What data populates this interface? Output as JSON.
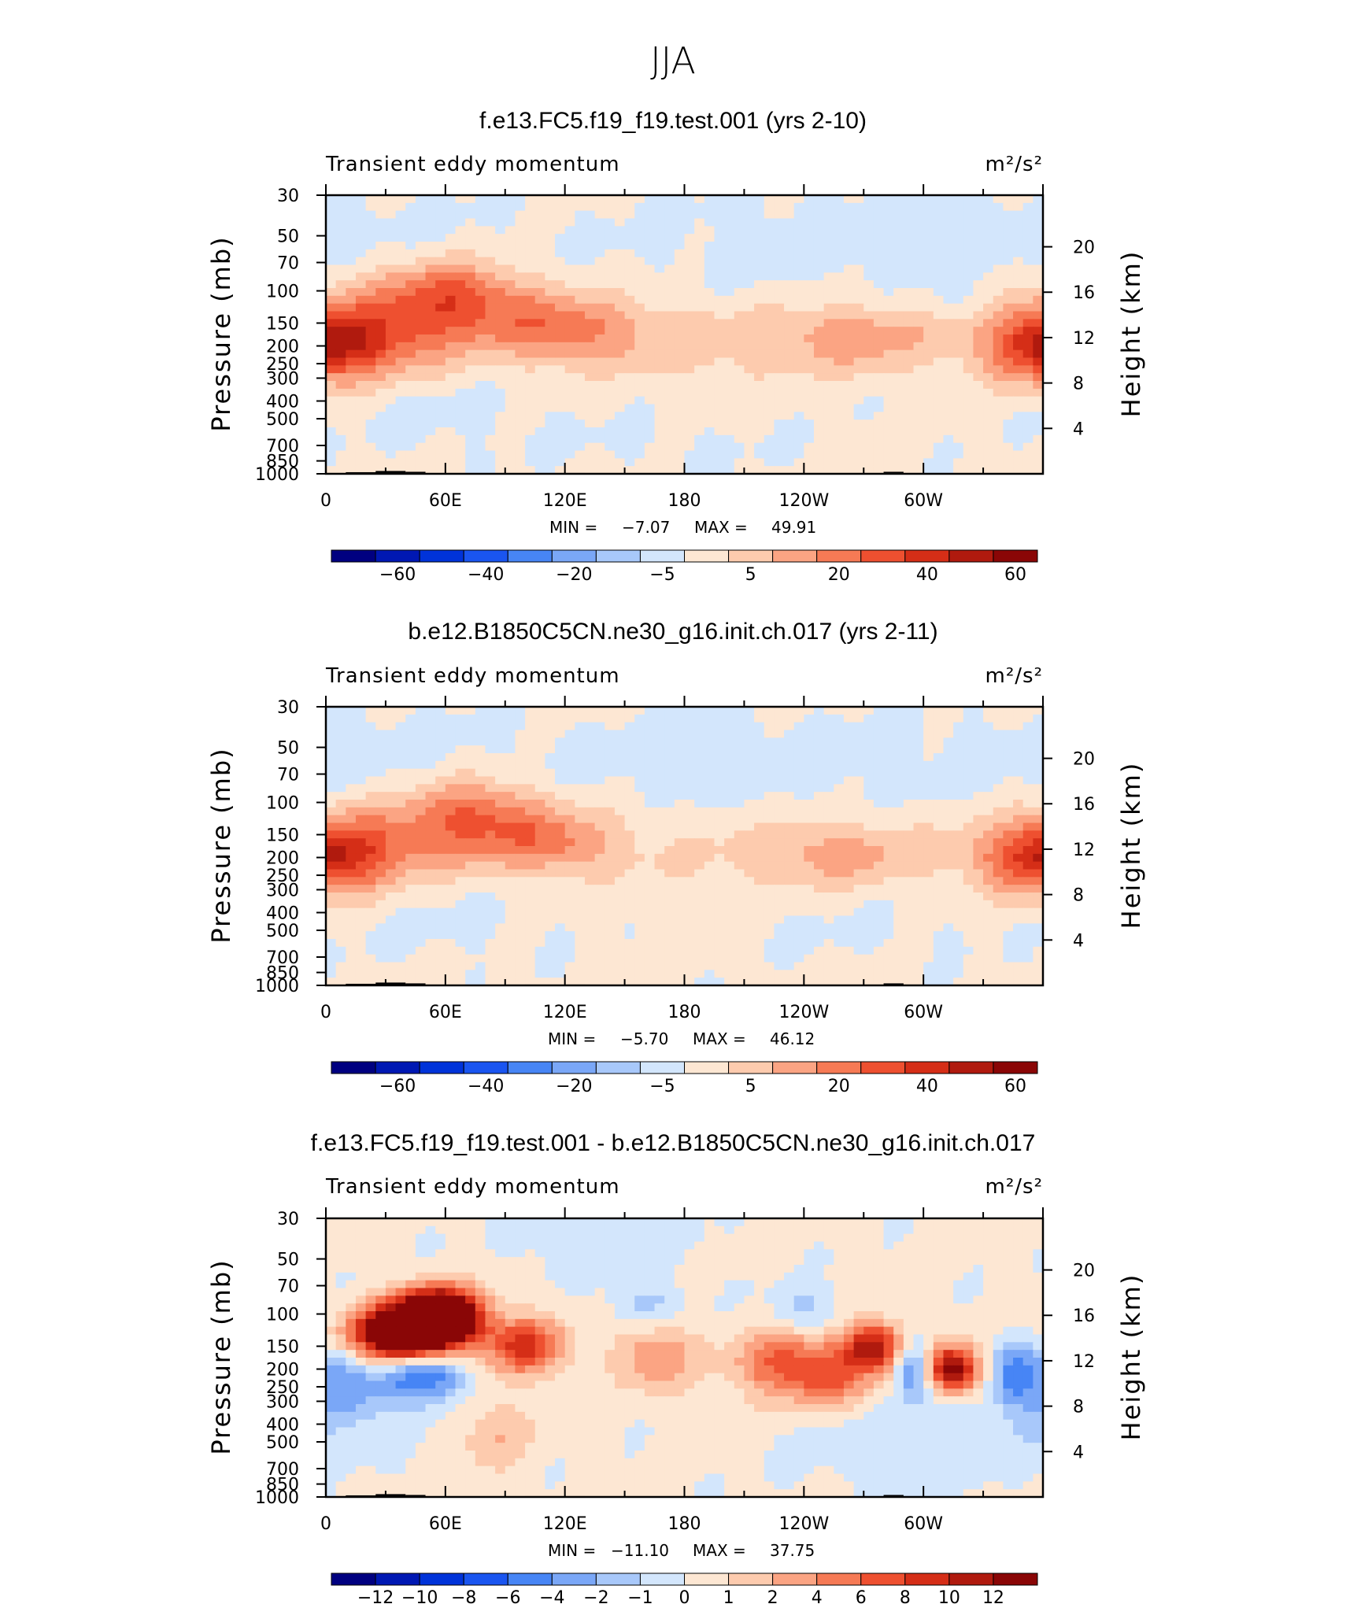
{
  "title": "JJA",
  "colors": {
    "full_levels": [
      "#000080",
      "#0018b3",
      "#0033d9",
      "#1a55f0",
      "#4785f5",
      "#7aa7f7",
      "#a8c8fa",
      "#d3e6fc",
      "#fde7d3",
      "#fdcbae",
      "#fba483",
      "#f67a55",
      "#ee5030",
      "#d52e17",
      "#b01a0e",
      "#8a0606"
    ],
    "diff_levels": [
      "#000080",
      "#0018b3",
      "#0033d9",
      "#1a55f0",
      "#4785f5",
      "#7aa7f7",
      "#a8c8fa",
      "#d3e6fc",
      "#fde7d3",
      "#fdcbae",
      "#fba483",
      "#f67a55",
      "#ee5030",
      "#d52e17",
      "#b01a0e",
      "#8a0606"
    ],
    "topography": "#000000"
  },
  "chart_data": [
    {
      "type": "heatmap",
      "panel_title": "f.e13.FC5.f19_f19.test.001 (yrs 2-10)",
      "left_label": "Transient eddy momentum",
      "units": "m²/s²",
      "ylabel": "Pressure (mb)",
      "ylabel_right": "Height (km)",
      "x_ticks": [
        "0",
        "60E",
        "120E",
        "180",
        "120W",
        "60W"
      ],
      "xlim": [
        0,
        360
      ],
      "y_ticks": [
        "30",
        "50",
        "70",
        "100",
        "150",
        "200",
        "250",
        "300",
        "400",
        "500",
        "700",
        "850",
        "1000"
      ],
      "ylim": [
        1000,
        30
      ],
      "y_ticks_right": [
        "20",
        "16",
        "12",
        "8",
        "4"
      ],
      "stats": {
        "min_label": "MIN =",
        "min": "−7.07",
        "max_label": "MAX =",
        "max": "49.91"
      },
      "colorbar_labels": [
        "−60",
        "−40",
        "−20",
        "−5",
        "5",
        "20",
        "40",
        "60"
      ],
      "colorbar_scale": [
        -70,
        70
      ],
      "background_value": 2,
      "features": [
        {
          "lon": 35,
          "p": 160,
          "amp": 26,
          "sx": 28,
          "sy": 0.38
        },
        {
          "lon": 65,
          "p": 105,
          "amp": 30,
          "sx": 24,
          "sy": 0.3
        },
        {
          "lon": 115,
          "p": 160,
          "amp": 28,
          "sx": 28,
          "sy": 0.32
        },
        {
          "lon": 0,
          "p": 200,
          "amp": 20,
          "sx": 16,
          "sy": 0.38
        },
        {
          "lon": 360,
          "p": 200,
          "amp": 28,
          "sx": 26,
          "sy": 0.3
        },
        {
          "lon": 265,
          "p": 180,
          "amp": 22,
          "sx": 30,
          "sy": 0.3
        },
        {
          "lon": 205,
          "p": 200,
          "amp": 7,
          "sx": 25,
          "sy": 0.4
        },
        {
          "lon": 160,
          "p": 180,
          "amp": 8,
          "sx": 25,
          "sy": 0.35
        },
        {
          "lon": 0,
          "p": 45,
          "amp": -4,
          "sx": 70,
          "sy": 0.4
        },
        {
          "lon": 230,
          "p": 60,
          "amp": -5,
          "sx": 70,
          "sy": 0.5
        },
        {
          "lon": 50,
          "p": 450,
          "amp": -4,
          "sx": 45,
          "sy": 0.35
        },
        {
          "lon": 170,
          "p": 700,
          "amp": -3,
          "sx": 50,
          "sy": 0.25
        },
        {
          "lon": 315,
          "p": 120,
          "amp": -4,
          "sx": 8,
          "sy": 0.2
        }
      ]
    },
    {
      "type": "heatmap",
      "panel_title": "b.e12.B1850C5CN.ne30_g16.init.ch.017 (yrs 2-11)",
      "left_label": "Transient eddy momentum",
      "units": "m²/s²",
      "ylabel": "Pressure (mb)",
      "ylabel_right": "Height (km)",
      "x_ticks": [
        "0",
        "60E",
        "120E",
        "180",
        "120W",
        "60W"
      ],
      "xlim": [
        0,
        360
      ],
      "y_ticks": [
        "30",
        "50",
        "70",
        "100",
        "150",
        "200",
        "250",
        "300",
        "400",
        "500",
        "700",
        "850",
        "1000"
      ],
      "ylim": [
        1000,
        30
      ],
      "y_ticks_right": [
        "20",
        "16",
        "12",
        "8",
        "4"
      ],
      "stats": {
        "min_label": "MIN =",
        "min": "−5.70",
        "max_label": "MAX =",
        "max": "46.12"
      },
      "colorbar_labels": [
        "−60",
        "−40",
        "−20",
        "−5",
        "5",
        "20",
        "40",
        "60"
      ],
      "colorbar_scale": [
        -70,
        70
      ],
      "background_value": 2,
      "features": [
        {
          "lon": 40,
          "p": 160,
          "amp": 20,
          "sx": 32,
          "sy": 0.35
        },
        {
          "lon": 75,
          "p": 110,
          "amp": 26,
          "sx": 22,
          "sy": 0.3
        },
        {
          "lon": 115,
          "p": 165,
          "amp": 26,
          "sx": 26,
          "sy": 0.3
        },
        {
          "lon": 0,
          "p": 200,
          "amp": 22,
          "sx": 20,
          "sy": 0.35
        },
        {
          "lon": 360,
          "p": 200,
          "amp": 24,
          "sx": 24,
          "sy": 0.3
        },
        {
          "lon": 255,
          "p": 190,
          "amp": 20,
          "sx": 36,
          "sy": 0.3
        },
        {
          "lon": 20,
          "p": 55,
          "amp": -5,
          "sx": 50,
          "sy": 0.4
        },
        {
          "lon": 210,
          "p": 60,
          "amp": -6,
          "sx": 80,
          "sy": 0.45
        },
        {
          "lon": 60,
          "p": 450,
          "amp": -4,
          "sx": 40,
          "sy": 0.35
        },
        {
          "lon": 270,
          "p": 500,
          "amp": -3,
          "sx": 50,
          "sy": 0.3
        },
        {
          "lon": 180,
          "p": 300,
          "amp": 4,
          "sx": 20,
          "sy": 0.6
        }
      ]
    },
    {
      "type": "heatmap",
      "panel_title": "f.e13.FC5.f19_f19.test.001 - b.e12.B1850C5CN.ne30_g16.init.ch.017",
      "left_label": "Transient eddy momentum",
      "units": "m²/s²",
      "ylabel": "Pressure (mb)",
      "ylabel_right": "Height (km)",
      "x_ticks": [
        "0",
        "60E",
        "120E",
        "180",
        "120W",
        "60W"
      ],
      "xlim": [
        0,
        360
      ],
      "y_ticks": [
        "30",
        "50",
        "70",
        "100",
        "150",
        "200",
        "250",
        "300",
        "400",
        "500",
        "700",
        "850",
        "1000"
      ],
      "ylim": [
        1000,
        30
      ],
      "y_ticks_right": [
        "20",
        "16",
        "12",
        "8",
        "4"
      ],
      "stats": {
        "min_label": "MIN =",
        "min": "−11.10",
        "max_label": "MAX =",
        "max": "37.75"
      },
      "colorbar_labels": [
        "−12",
        "−10",
        "−8",
        "−6",
        "−4",
        "−2",
        "−1",
        "0",
        "1",
        "2",
        "4",
        "6",
        "8",
        "10",
        "12"
      ],
      "colorbar_scale": [
        -14,
        14
      ],
      "background_value": 0.4,
      "features": [
        {
          "lon": 40,
          "p": 130,
          "amp": 22,
          "sx": 18,
          "sy": 0.25
        },
        {
          "lon": 58,
          "p": 100,
          "amp": 20,
          "sx": 14,
          "sy": 0.22
        },
        {
          "lon": 100,
          "p": 150,
          "amp": 9,
          "sx": 14,
          "sy": 0.25
        },
        {
          "lon": 165,
          "p": 170,
          "amp": 5,
          "sx": 14,
          "sy": 0.3
        },
        {
          "lon": 230,
          "p": 190,
          "amp": 7,
          "sx": 18,
          "sy": 0.3
        },
        {
          "lon": 275,
          "p": 150,
          "amp": 11,
          "sx": 10,
          "sy": 0.22
        },
        {
          "lon": 315,
          "p": 200,
          "amp": 14,
          "sx": 9,
          "sy": 0.2
        },
        {
          "lon": 255,
          "p": 220,
          "amp": 5,
          "sx": 14,
          "sy": 0.3
        },
        {
          "lon": 50,
          "p": 210,
          "amp": -9,
          "sx": 14,
          "sy": 0.25
        },
        {
          "lon": 10,
          "p": 250,
          "amp": -5,
          "sx": 18,
          "sy": 0.4
        },
        {
          "lon": 295,
          "p": 200,
          "amp": -7,
          "sx": 6,
          "sy": 0.25
        },
        {
          "lon": 345,
          "p": 210,
          "amp": -5,
          "sx": 8,
          "sy": 0.3
        },
        {
          "lon": 160,
          "p": 90,
          "amp": -3,
          "sx": 12,
          "sy": 0.2
        },
        {
          "lon": 240,
          "p": 95,
          "amp": -3,
          "sx": 12,
          "sy": 0.2
        },
        {
          "lon": 300,
          "p": 500,
          "amp": -2,
          "sx": 40,
          "sy": 0.4
        },
        {
          "lon": 140,
          "p": 40,
          "amp": -2,
          "sx": 30,
          "sy": 0.3
        },
        {
          "lon": 85,
          "p": 450,
          "amp": 3,
          "sx": 12,
          "sy": 0.35
        }
      ]
    }
  ]
}
